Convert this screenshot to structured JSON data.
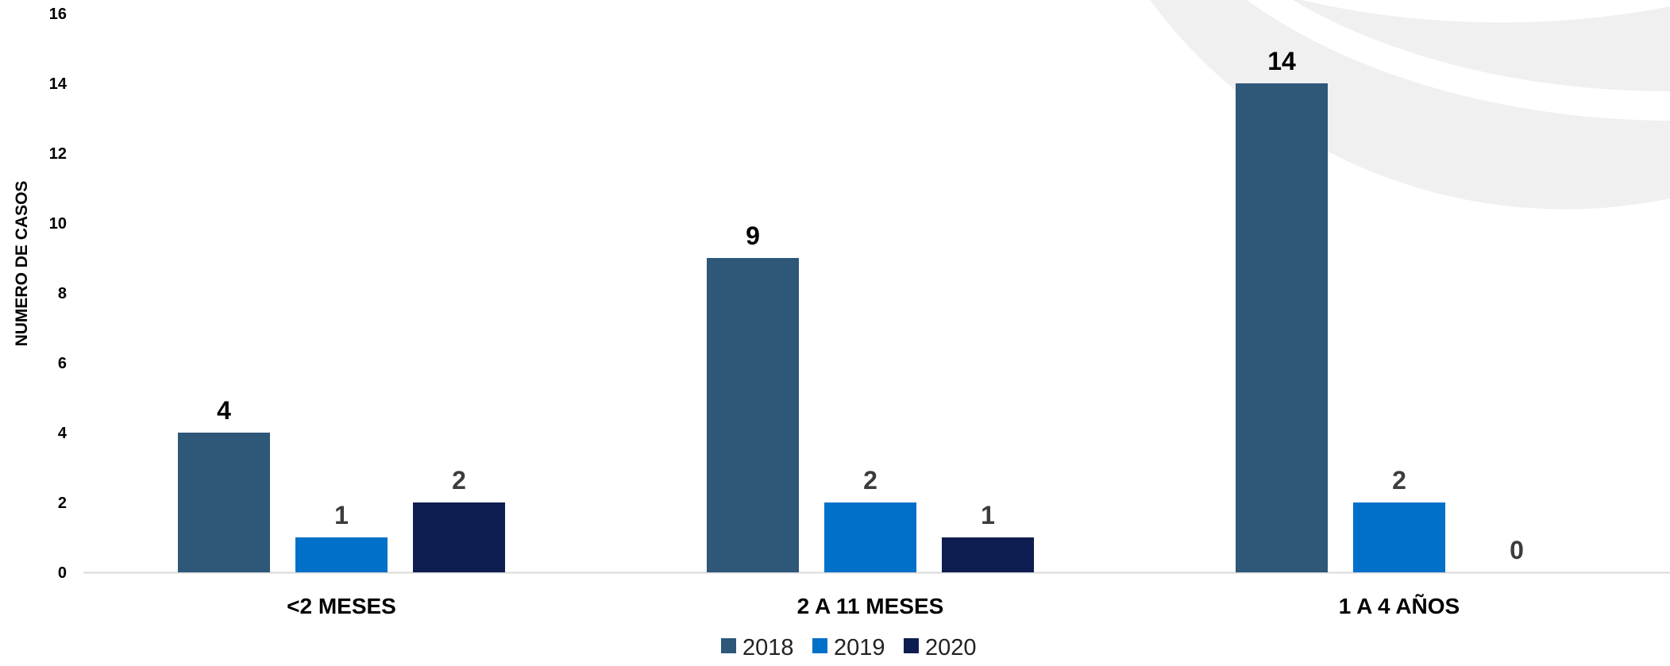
{
  "chart_data": {
    "type": "bar",
    "title": "",
    "xlabel": "",
    "ylabel": "NUMERO DE CASOS",
    "ylim": [
      0,
      16
    ],
    "yticks": [
      0,
      2,
      4,
      6,
      8,
      10,
      12,
      14,
      16
    ],
    "categories": [
      "<2 MESES",
      "2 A 11 MESES",
      "1 A 4 AÑOS"
    ],
    "series": [
      {
        "name": "2018",
        "values": [
          4,
          9,
          14
        ],
        "color": "#2e5778",
        "label_color": "#000000"
      },
      {
        "name": "2019",
        "values": [
          1,
          2,
          2
        ],
        "color": "#0070c8",
        "label_color": "#3c3c3c"
      },
      {
        "name": "2020",
        "values": [
          2,
          1,
          0
        ],
        "color": "#0e1d50",
        "label_color": "#3c3c3c"
      }
    ],
    "grid": false,
    "legend": "bottom-center",
    "axis_color": "#d9d9d9",
    "watermark_color": "#f0f0f0"
  }
}
